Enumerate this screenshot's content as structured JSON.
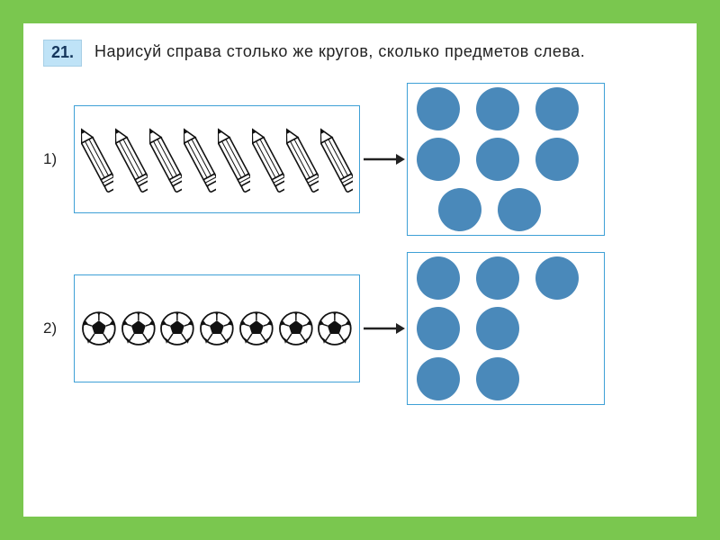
{
  "problem_number_label": "21.",
  "instruction": "Нарисуй справа столько же кругов, сколько предметов слева.",
  "colors": {
    "page_border": "#7ac74f",
    "page_bg": "#ffffff",
    "badge_bg": "#bfe3f7",
    "badge_text": "#14365c",
    "box_border": "#3ea0d6",
    "circle_fill": "#4a89ba",
    "arrow": "#222222",
    "text": "#222222",
    "pencil_stroke": "#111111",
    "pencil_fill": "#ffffff",
    "ball_stroke": "#111111",
    "ball_fill": "#ffffff"
  },
  "exercises": [
    {
      "label": "1)",
      "item_kind": "pencil",
      "item_count": 8,
      "circle_rows": [
        3,
        3,
        2
      ],
      "indent_rows": [
        2
      ]
    },
    {
      "label": "2)",
      "item_kind": "soccer_ball",
      "item_count": 7,
      "circle_rows": [
        3,
        2,
        2
      ],
      "indent_rows": []
    }
  ]
}
